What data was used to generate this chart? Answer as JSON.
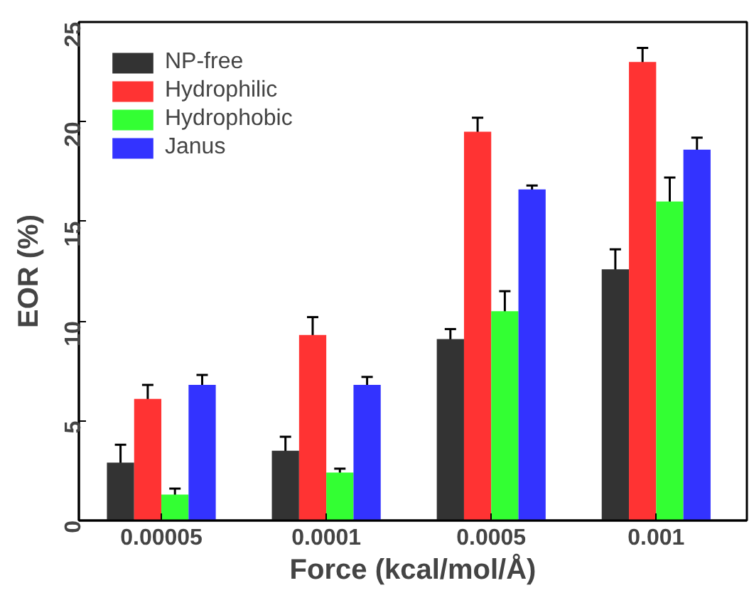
{
  "chart_data": {
    "type": "bar",
    "xlabel": "Force (kcal/mol/Å)",
    "ylabel": "EOR (%)",
    "categories": [
      "0.00005",
      "0.0001",
      "0.0005",
      "0.001"
    ],
    "series": [
      {
        "name": "NP-free",
        "color": "#333333",
        "values": [
          2.9,
          3.5,
          9.1,
          12.6
        ],
        "errors": [
          0.9,
          0.7,
          0.5,
          1.0
        ]
      },
      {
        "name": "Hydrophilic",
        "color": "#ff3333",
        "values": [
          6.1,
          9.3,
          19.5,
          23.0
        ],
        "errors": [
          0.7,
          0.9,
          0.7,
          0.7
        ]
      },
      {
        "name": "Hydrophobic",
        "color": "#33ff33",
        "values": [
          1.3,
          2.4,
          10.5,
          16.0
        ],
        "errors": [
          0.3,
          0.2,
          1.0,
          1.2
        ]
      },
      {
        "name": "Janus",
        "color": "#3333ff",
        "values": [
          6.8,
          6.8,
          16.6,
          18.6
        ],
        "errors": [
          0.5,
          0.4,
          0.2,
          0.6
        ]
      }
    ],
    "ylim": [
      0,
      25
    ],
    "yticks": [
      0,
      5,
      10,
      15,
      20,
      25
    ],
    "grid": false,
    "legend": "top left"
  }
}
